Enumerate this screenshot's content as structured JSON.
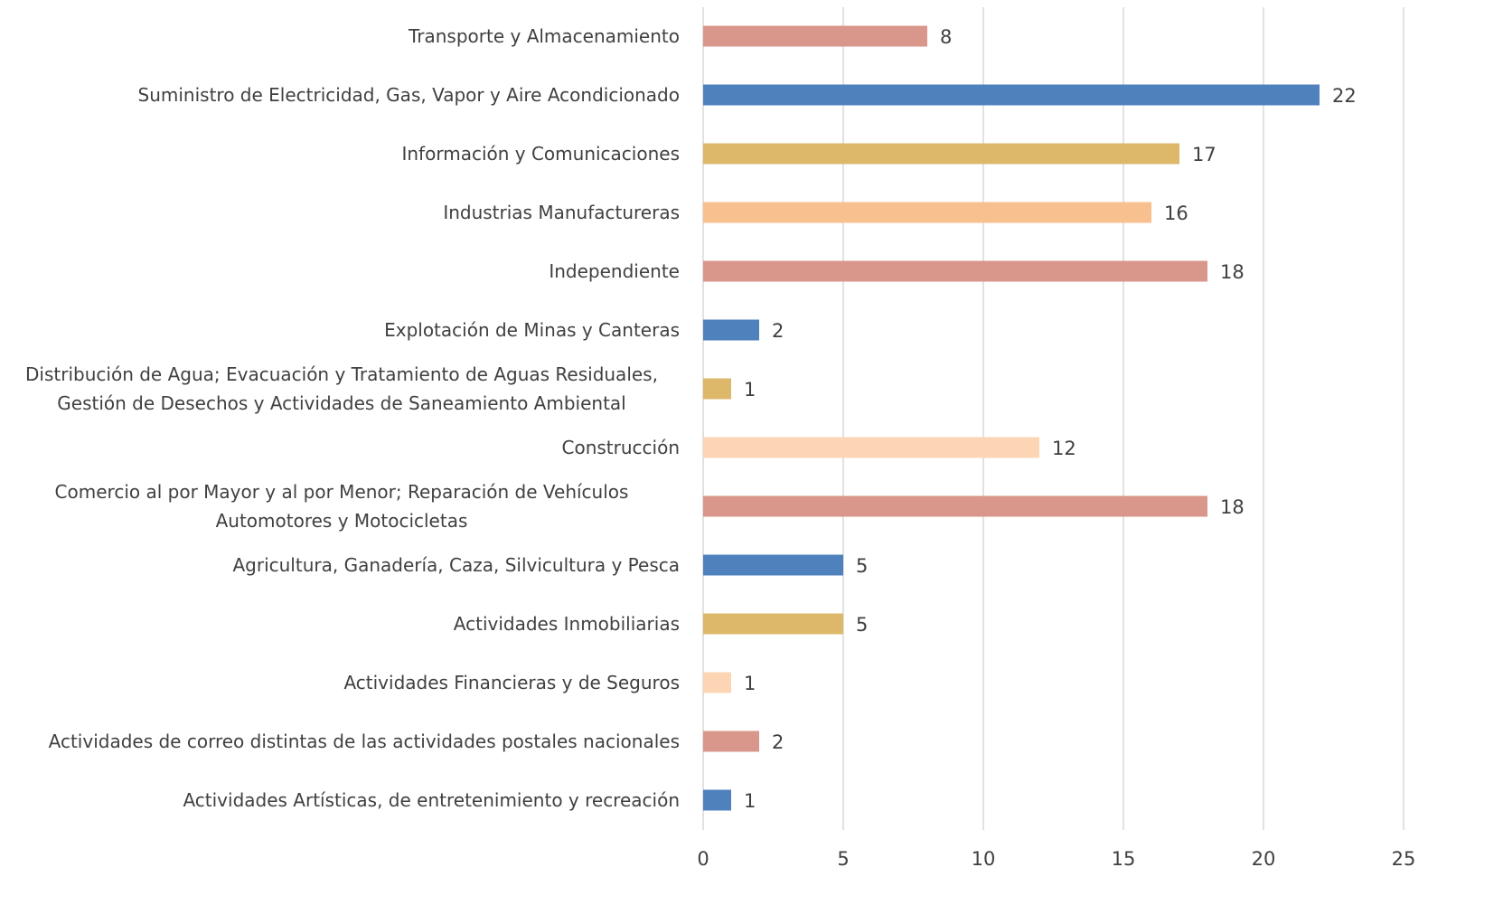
{
  "chart_data": {
    "type": "barh",
    "categories": [
      "Transporte y Almacenamiento",
      "Suministro de Electricidad, Gas, Vapor y Aire Acondicionado",
      "Información y Comunicaciones",
      "Industrias Manufactureras",
      "Independiente",
      "Explotación de Minas y Canteras",
      "Distribución de Agua; Evacuación y Tratamiento de Aguas Residuales, Gestión de Desechos y Actividades de Saneamiento Ambiental",
      "Construcción",
      "Comercio al por Mayor y al por Menor; Reparación de Vehículos Automotores y Motocicletas",
      "Agricultura, Ganadería, Caza, Silvicultura y Pesca",
      "Actividades Inmobiliarias",
      "Actividades Financieras y de Seguros",
      "Actividades de correo distintas de las actividades postales nacionales",
      "Actividades Artísticas, de entretenimiento y recreación"
    ],
    "values": [
      8,
      22,
      17,
      16,
      18,
      2,
      1,
      12,
      18,
      5,
      5,
      1,
      2,
      1
    ],
    "colors": [
      "#d9968a",
      "#4f81bd",
      "#ddb76a",
      "#f9c08f",
      "#d9968a",
      "#4f81bd",
      "#ddb76a",
      "#fcd5b5",
      "#d9968a",
      "#4f81bd",
      "#ddb76a",
      "#fcd5b5",
      "#d9968a",
      "#4f81bd"
    ],
    "xlim": [
      0,
      25
    ],
    "xticks": [
      0,
      5,
      10,
      15,
      20,
      25
    ],
    "grid": true
  }
}
